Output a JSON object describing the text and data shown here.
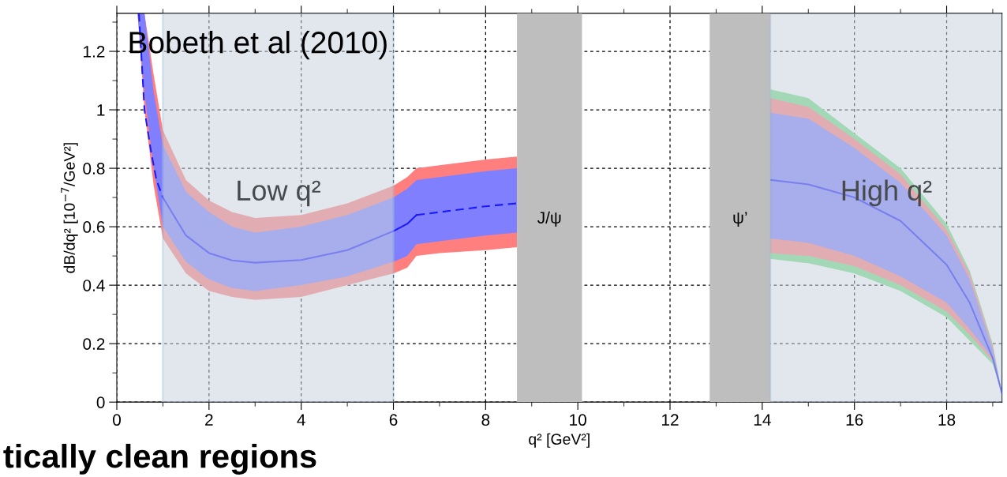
{
  "chart_data": {
    "type": "line",
    "xlabel": "q² [GeV²]",
    "ylabel": "dB/dq² [10$^{−7}$/GeV²]",
    "xlim": [
      0,
      19.2
    ],
    "ylim": [
      0,
      1.33
    ],
    "xticks": [
      0,
      2,
      4,
      6,
      8,
      10,
      12,
      14,
      16,
      18
    ],
    "yticks": [
      0,
      0.2,
      0.4,
      0.6,
      0.8,
      1,
      1.2
    ],
    "grid": true,
    "legend": false,
    "marker": "none",
    "bands": [
      {
        "axis": "x",
        "from": 1,
        "to": 6,
        "label": "Low q²",
        "color": "#c9d4dc"
      },
      {
        "axis": "x",
        "from": 8.68,
        "to": 10.09,
        "label": "J/ψ",
        "color": "#bebebe"
      },
      {
        "axis": "x",
        "from": 12.86,
        "to": 14.18,
        "label": "ψ’",
        "color": "#bebebe"
      },
      {
        "axis": "x",
        "from": 14.18,
        "to": 19.2,
        "label": "High q²",
        "color": "#c9d4dc"
      }
    ],
    "series": [
      {
        "color": "#ff7f7f",
        "x": [
          0.45,
          0.6,
          0.8,
          1,
          1.5,
          2,
          2.5,
          3,
          4,
          5,
          6,
          6.3,
          6.5,
          7,
          8,
          8.68
        ],
        "values": [
          null,
          null,
          null,
          null,
          null,
          null,
          null,
          null,
          null,
          null,
          null,
          null,
          null,
          null,
          null,
          null
        ],
        "lower": [
          1.33,
          1.0,
          0.74,
          0.56,
          0.44,
          0.38,
          0.36,
          0.35,
          0.36,
          0.4,
          0.44,
          0.46,
          0.5,
          0.51,
          0.52,
          0.53
        ],
        "upper": [
          1.33,
          1.33,
          1.12,
          0.93,
          0.76,
          0.69,
          0.65,
          0.63,
          0.64,
          0.68,
          0.74,
          0.77,
          0.8,
          0.81,
          0.83,
          0.84
        ]
      },
      {
        "color": "#8080ff",
        "x": [
          0.45,
          0.6,
          0.8,
          1,
          1.5,
          2,
          2.5,
          3,
          4,
          5,
          6,
          6.3,
          6.5,
          7,
          8,
          8.68
        ],
        "values": [
          null,
          null,
          null,
          null,
          null,
          null,
          null,
          null,
          null,
          null,
          null,
          null,
          null,
          null,
          null,
          null
        ],
        "lower": [
          1.33,
          1.06,
          0.8,
          0.6,
          0.48,
          0.42,
          0.39,
          0.38,
          0.4,
          0.43,
          0.48,
          0.5,
          0.54,
          0.55,
          0.57,
          0.58
        ],
        "upper": [
          1.33,
          1.33,
          1.06,
          0.88,
          0.72,
          0.65,
          0.6,
          0.58,
          0.6,
          0.64,
          0.7,
          0.73,
          0.76,
          0.77,
          0.79,
          0.8
        ]
      },
      {
        "color": "#77dd88",
        "x": [
          14.18,
          15,
          16,
          17,
          18,
          18.5,
          19,
          19.2
        ],
        "values": [
          null,
          null,
          null,
          null,
          null,
          null,
          null,
          null
        ],
        "lower": [
          0.49,
          0.475,
          0.44,
          0.38,
          0.29,
          0.21,
          0.13,
          0.03
        ],
        "upper": [
          1.07,
          1.04,
          0.92,
          0.8,
          0.61,
          0.45,
          0.2,
          0.03
        ]
      },
      {
        "color": "#ff7f7f",
        "x": [
          14.18,
          15,
          16,
          17,
          18,
          18.5,
          19,
          19.2
        ],
        "values": [
          null,
          null,
          null,
          null,
          null,
          null,
          null,
          null
        ],
        "lower": [
          0.51,
          0.5,
          0.465,
          0.4,
          0.31,
          0.23,
          0.14,
          0.03
        ],
        "upper": [
          1.04,
          1.01,
          0.9,
          0.78,
          0.59,
          0.44,
          0.19,
          0.03
        ]
      },
      {
        "color": "#8080ff",
        "x": [
          14.18,
          15,
          16,
          17,
          18,
          18.5,
          19,
          19.2
        ],
        "values": [
          null,
          null,
          null,
          null,
          null,
          null,
          null,
          null
        ],
        "lower": [
          0.56,
          0.545,
          0.5,
          0.43,
          0.34,
          0.25,
          0.15,
          0.03
        ],
        "upper": [
          0.99,
          0.97,
          0.87,
          0.75,
          0.57,
          0.42,
          0.18,
          0.03
        ]
      },
      {
        "color": "#1a1aff",
        "line_style": "dashed",
        "x": [
          0.48,
          0.6,
          0.75,
          0.86,
          1
        ],
        "values": [
          1.33,
          1.0,
          0.85,
          0.76,
          0.7
        ]
      },
      {
        "color": "#1a1aff",
        "line_style": "solid",
        "x": [
          1,
          1.5,
          2,
          2.5,
          3,
          4,
          5,
          6,
          6.3,
          6.5
        ],
        "values": [
          0.7,
          0.57,
          0.51,
          0.485,
          0.477,
          0.486,
          0.52,
          0.585,
          0.61,
          0.64
        ]
      },
      {
        "color": "#1a1aff",
        "line_style": "dashed",
        "x": [
          6.5,
          7,
          8,
          8.68
        ],
        "values": [
          0.64,
          0.65,
          0.67,
          0.68
        ]
      },
      {
        "color": "#1a1aff",
        "line_style": "solid",
        "x": [
          14.18,
          15,
          16,
          17,
          18,
          18.5,
          19,
          19.2
        ],
        "values": [
          0.76,
          0.745,
          0.7,
          0.62,
          0.47,
          0.34,
          0.15,
          0.03
        ]
      }
    ],
    "annotations": [
      "Bobeth et al (2010)",
      "tically clean regions"
    ]
  }
}
